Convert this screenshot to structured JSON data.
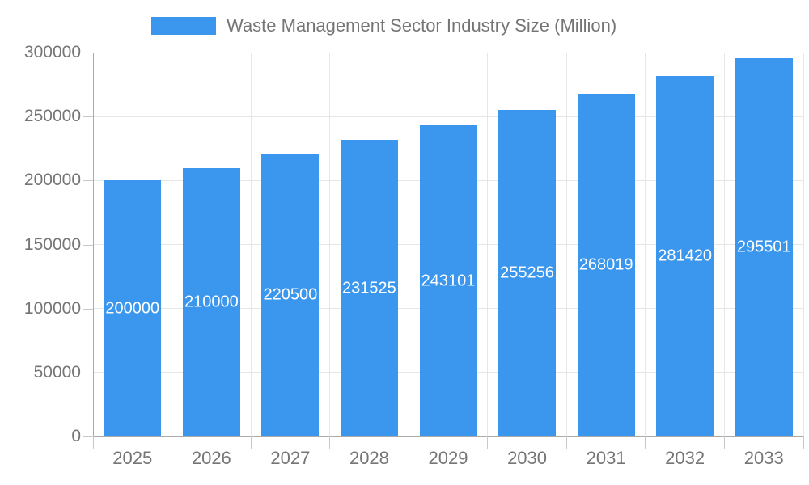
{
  "chart_data": {
    "type": "bar",
    "title": "",
    "legend": {
      "label": "Waste Management Sector Industry Size (Million)",
      "position": "top"
    },
    "categories": [
      "2025",
      "2026",
      "2027",
      "2028",
      "2029",
      "2030",
      "2031",
      "2032",
      "2033"
    ],
    "series": [
      {
        "name": "Waste Management Sector Industry Size (Million)",
        "values": [
          200000,
          210000,
          220500,
          231525,
          243101,
          255256,
          268019,
          281420,
          295501
        ]
      }
    ],
    "bar_labels": [
      "200000",
      "210000",
      "220500",
      "231525",
      "243101",
      "255256",
      "268019",
      "281420",
      "295501"
    ],
    "xlabel": "",
    "ylabel": "",
    "ylim": [
      0,
      300000
    ],
    "yticks": [
      0,
      50000,
      100000,
      150000,
      200000,
      250000,
      300000
    ],
    "ytick_labels": [
      "0",
      "50000",
      "100000",
      "150000",
      "200000",
      "250000",
      "300000"
    ],
    "grid": true,
    "colors": {
      "bar": "#3b97ed",
      "axis_text": "#757575",
      "value_text": "#ffffff",
      "grid": "#e6e6e6",
      "axis_line": "#ababab",
      "tick": "#c9c9c9",
      "background": "#ffffff"
    }
  }
}
